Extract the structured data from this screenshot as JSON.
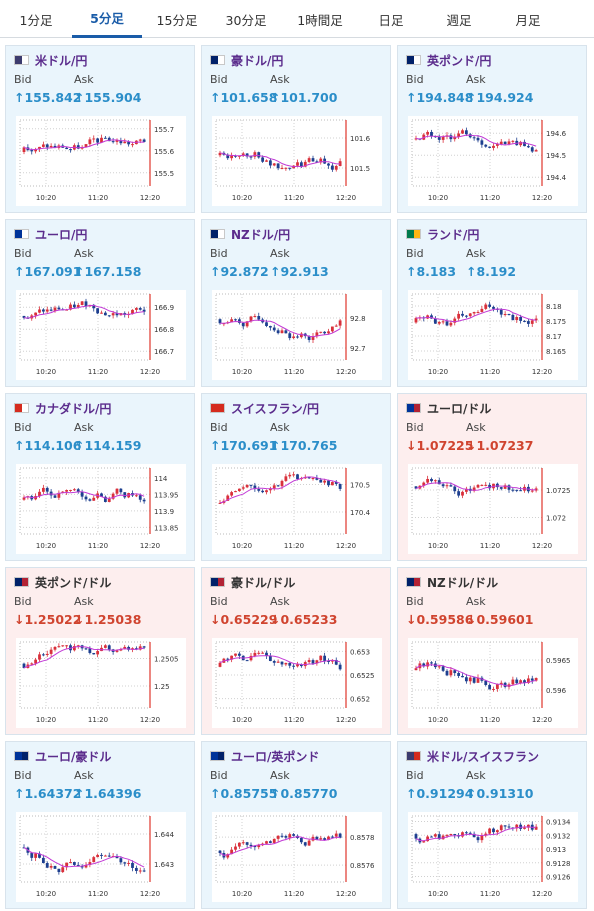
{
  "tabs": [
    "1分足",
    "5分足",
    "15分足",
    "30分足",
    "1時間足",
    "日足",
    "週足",
    "月足"
  ],
  "active_tab": 1,
  "labels": {
    "bid": "Bid",
    "ask": "Ask"
  },
  "cards": [
    {
      "name": "米ドル/円",
      "trend": "up",
      "bid": "↑155.842",
      "ask": "↑155.904",
      "flag": [
        "#3c3b6e",
        "#ffffff"
      ],
      "chart_data": {
        "type": "candlestick",
        "x_ticks": [
          "10:20",
          "11:20",
          "12:20"
        ],
        "y_ticks": [
          "155.7",
          "155.6",
          "155.5"
        ],
        "ylim": [
          155.44,
          155.74
        ]
      }
    },
    {
      "name": "豪ドル/円",
      "trend": "up",
      "bid": "↑101.658",
      "ask": "↑101.700",
      "flag": [
        "#012169",
        "#ffffff"
      ],
      "chart_data": {
        "type": "candlestick",
        "x_ticks": [
          "10:20",
          "11:20",
          "12:20"
        ],
        "y_ticks": [
          "101.6",
          "101.5"
        ],
        "ylim": [
          101.44,
          101.66
        ]
      }
    },
    {
      "name": "英ポンド/円",
      "trend": "up",
      "bid": "↑194.848",
      "ask": "↑194.924",
      "flag": [
        "#012169",
        "#ffffff"
      ],
      "chart_data": {
        "type": "candlestick",
        "x_ticks": [
          "10:20",
          "11:20",
          "12:20"
        ],
        "y_ticks": [
          "194.6",
          "194.5",
          "194.4"
        ],
        "ylim": [
          194.36,
          194.66
        ]
      }
    },
    {
      "name": "ユーロ/円",
      "trend": "up",
      "bid": "↑167.091",
      "ask": "↑167.158",
      "flag": [
        "#003399",
        "#ffffff"
      ],
      "chart_data": {
        "type": "candlestick",
        "x_ticks": [
          "10:20",
          "11:20",
          "12:20"
        ],
        "y_ticks": [
          "166.9",
          "166.8",
          "166.7"
        ],
        "ylim": [
          166.66,
          166.96
        ]
      }
    },
    {
      "name": "NZドル/円",
      "trend": "up",
      "bid": "↑92.872",
      "ask": "↑92.913",
      "flag": [
        "#012169",
        "#ffffff"
      ],
      "chart_data": {
        "type": "candlestick",
        "x_ticks": [
          "10:20",
          "11:20",
          "12:20"
        ],
        "y_ticks": [
          "92.8",
          "92.7"
        ],
        "ylim": [
          92.66,
          92.88
        ]
      }
    },
    {
      "name": "ランド/円",
      "trend": "up",
      "bid": "↑8.183",
      "ask": "↑8.192",
      "flag": [
        "#007a4d",
        "#ffb612"
      ],
      "chart_data": {
        "type": "candlestick",
        "x_ticks": [
          "10:20",
          "11:20",
          "12:20"
        ],
        "y_ticks": [
          "8.18",
          "8.175",
          "8.17",
          "8.165"
        ],
        "ylim": [
          8.162,
          8.184
        ]
      }
    },
    {
      "name": "カナダドル/円",
      "trend": "up",
      "bid": "↑114.106",
      "ask": "↑114.159",
      "flag": [
        "#d52b1e",
        "#ffffff"
      ],
      "chart_data": {
        "type": "candlestick",
        "x_ticks": [
          "10:20",
          "11:20",
          "12:20"
        ],
        "y_ticks": [
          "114",
          "113.95",
          "113.9",
          "113.85"
        ],
        "ylim": [
          113.83,
          114.03
        ]
      }
    },
    {
      "name": "スイスフラン/円",
      "trend": "up",
      "bid": "↑170.691",
      "ask": "↑170.765",
      "flag": [
        "#d52b1e",
        "#d52b1e"
      ],
      "chart_data": {
        "type": "candlestick",
        "x_ticks": [
          "10:20",
          "11:20",
          "12:20"
        ],
        "y_ticks": [
          "170.5",
          "170.4"
        ],
        "ylim": [
          170.32,
          170.56
        ]
      }
    },
    {
      "name": "ユーロ/ドル",
      "trend": "down",
      "bid": "↓1.07225",
      "ask": "↓1.07237",
      "flag": [
        "#003399",
        "#b22234"
      ],
      "chart_data": {
        "type": "candlestick",
        "x_ticks": [
          "10:20",
          "11:20",
          "12:20"
        ],
        "y_ticks": [
          "1.0725",
          "1.072"
        ],
        "ylim": [
          1.0717,
          1.0729
        ]
      }
    },
    {
      "name": "英ポンド/ドル",
      "trend": "down",
      "bid": "↓1.25022",
      "ask": "↓1.25038",
      "flag": [
        "#012169",
        "#b22234"
      ],
      "chart_data": {
        "type": "candlestick",
        "x_ticks": [
          "10:20",
          "11:20",
          "12:20"
        ],
        "y_ticks": [
          "1.2505",
          "1.25"
        ],
        "ylim": [
          1.2496,
          1.2508
        ]
      }
    },
    {
      "name": "豪ドル/ドル",
      "trend": "down",
      "bid": "↓0.65229",
      "ask": "↓0.65233",
      "flag": [
        "#012169",
        "#b22234"
      ],
      "chart_data": {
        "type": "candlestick",
        "x_ticks": [
          "10:20",
          "11:20",
          "12:20"
        ],
        "y_ticks": [
          "0.653",
          "0.6525",
          "0.652"
        ],
        "ylim": [
          0.6518,
          0.6532
        ]
      }
    },
    {
      "name": "NZドル/ドル",
      "trend": "down",
      "bid": "↓0.59586",
      "ask": "↓0.59601",
      "flag": [
        "#012169",
        "#b22234"
      ],
      "chart_data": {
        "type": "candlestick",
        "x_ticks": [
          "10:20",
          "11:20",
          "12:20"
        ],
        "y_ticks": [
          "0.5965",
          "0.596"
        ],
        "ylim": [
          0.5957,
          0.5968
        ]
      }
    },
    {
      "name": "ユーロ/豪ドル",
      "trend": "up",
      "bid": "↑1.64372",
      "ask": "↑1.64396",
      "flag": [
        "#003399",
        "#012169"
      ],
      "chart_data": {
        "type": "candlestick",
        "x_ticks": [
          "10:20",
          "11:20",
          "12:20"
        ],
        "y_ticks": [
          "1.644",
          "1.643"
        ],
        "ylim": [
          1.6424,
          1.6446
        ]
      }
    },
    {
      "name": "ユーロ/英ポンド",
      "trend": "up",
      "bid": "↑0.85755",
      "ask": "↑0.85770",
      "flag": [
        "#003399",
        "#012169"
      ],
      "chart_data": {
        "type": "candlestick",
        "x_ticks": [
          "10:20",
          "11:20",
          "12:20"
        ],
        "y_ticks": [
          "0.8578",
          "0.8576"
        ],
        "ylim": [
          0.85748,
          0.85795
        ]
      }
    },
    {
      "name": "米ドル/スイスフラン",
      "trend": "up",
      "bid": "↑0.91294",
      "ask": "↑0.91310",
      "flag": [
        "#3c3b6e",
        "#d52b1e"
      ],
      "chart_data": {
        "type": "candlestick",
        "x_ticks": [
          "10:20",
          "11:20",
          "12:20"
        ],
        "y_ticks": [
          "0.9134",
          "0.9132",
          "0.913",
          "0.9128",
          "0.9126"
        ],
        "ylim": [
          0.91252,
          0.91348
        ]
      }
    }
  ],
  "colors": {
    "candle_up": "#d9303b",
    "candle_down": "#1d3f8f",
    "moving_avg": "#c23ad6",
    "grid": "#d0d0d0",
    "tick_text": "#333333"
  }
}
